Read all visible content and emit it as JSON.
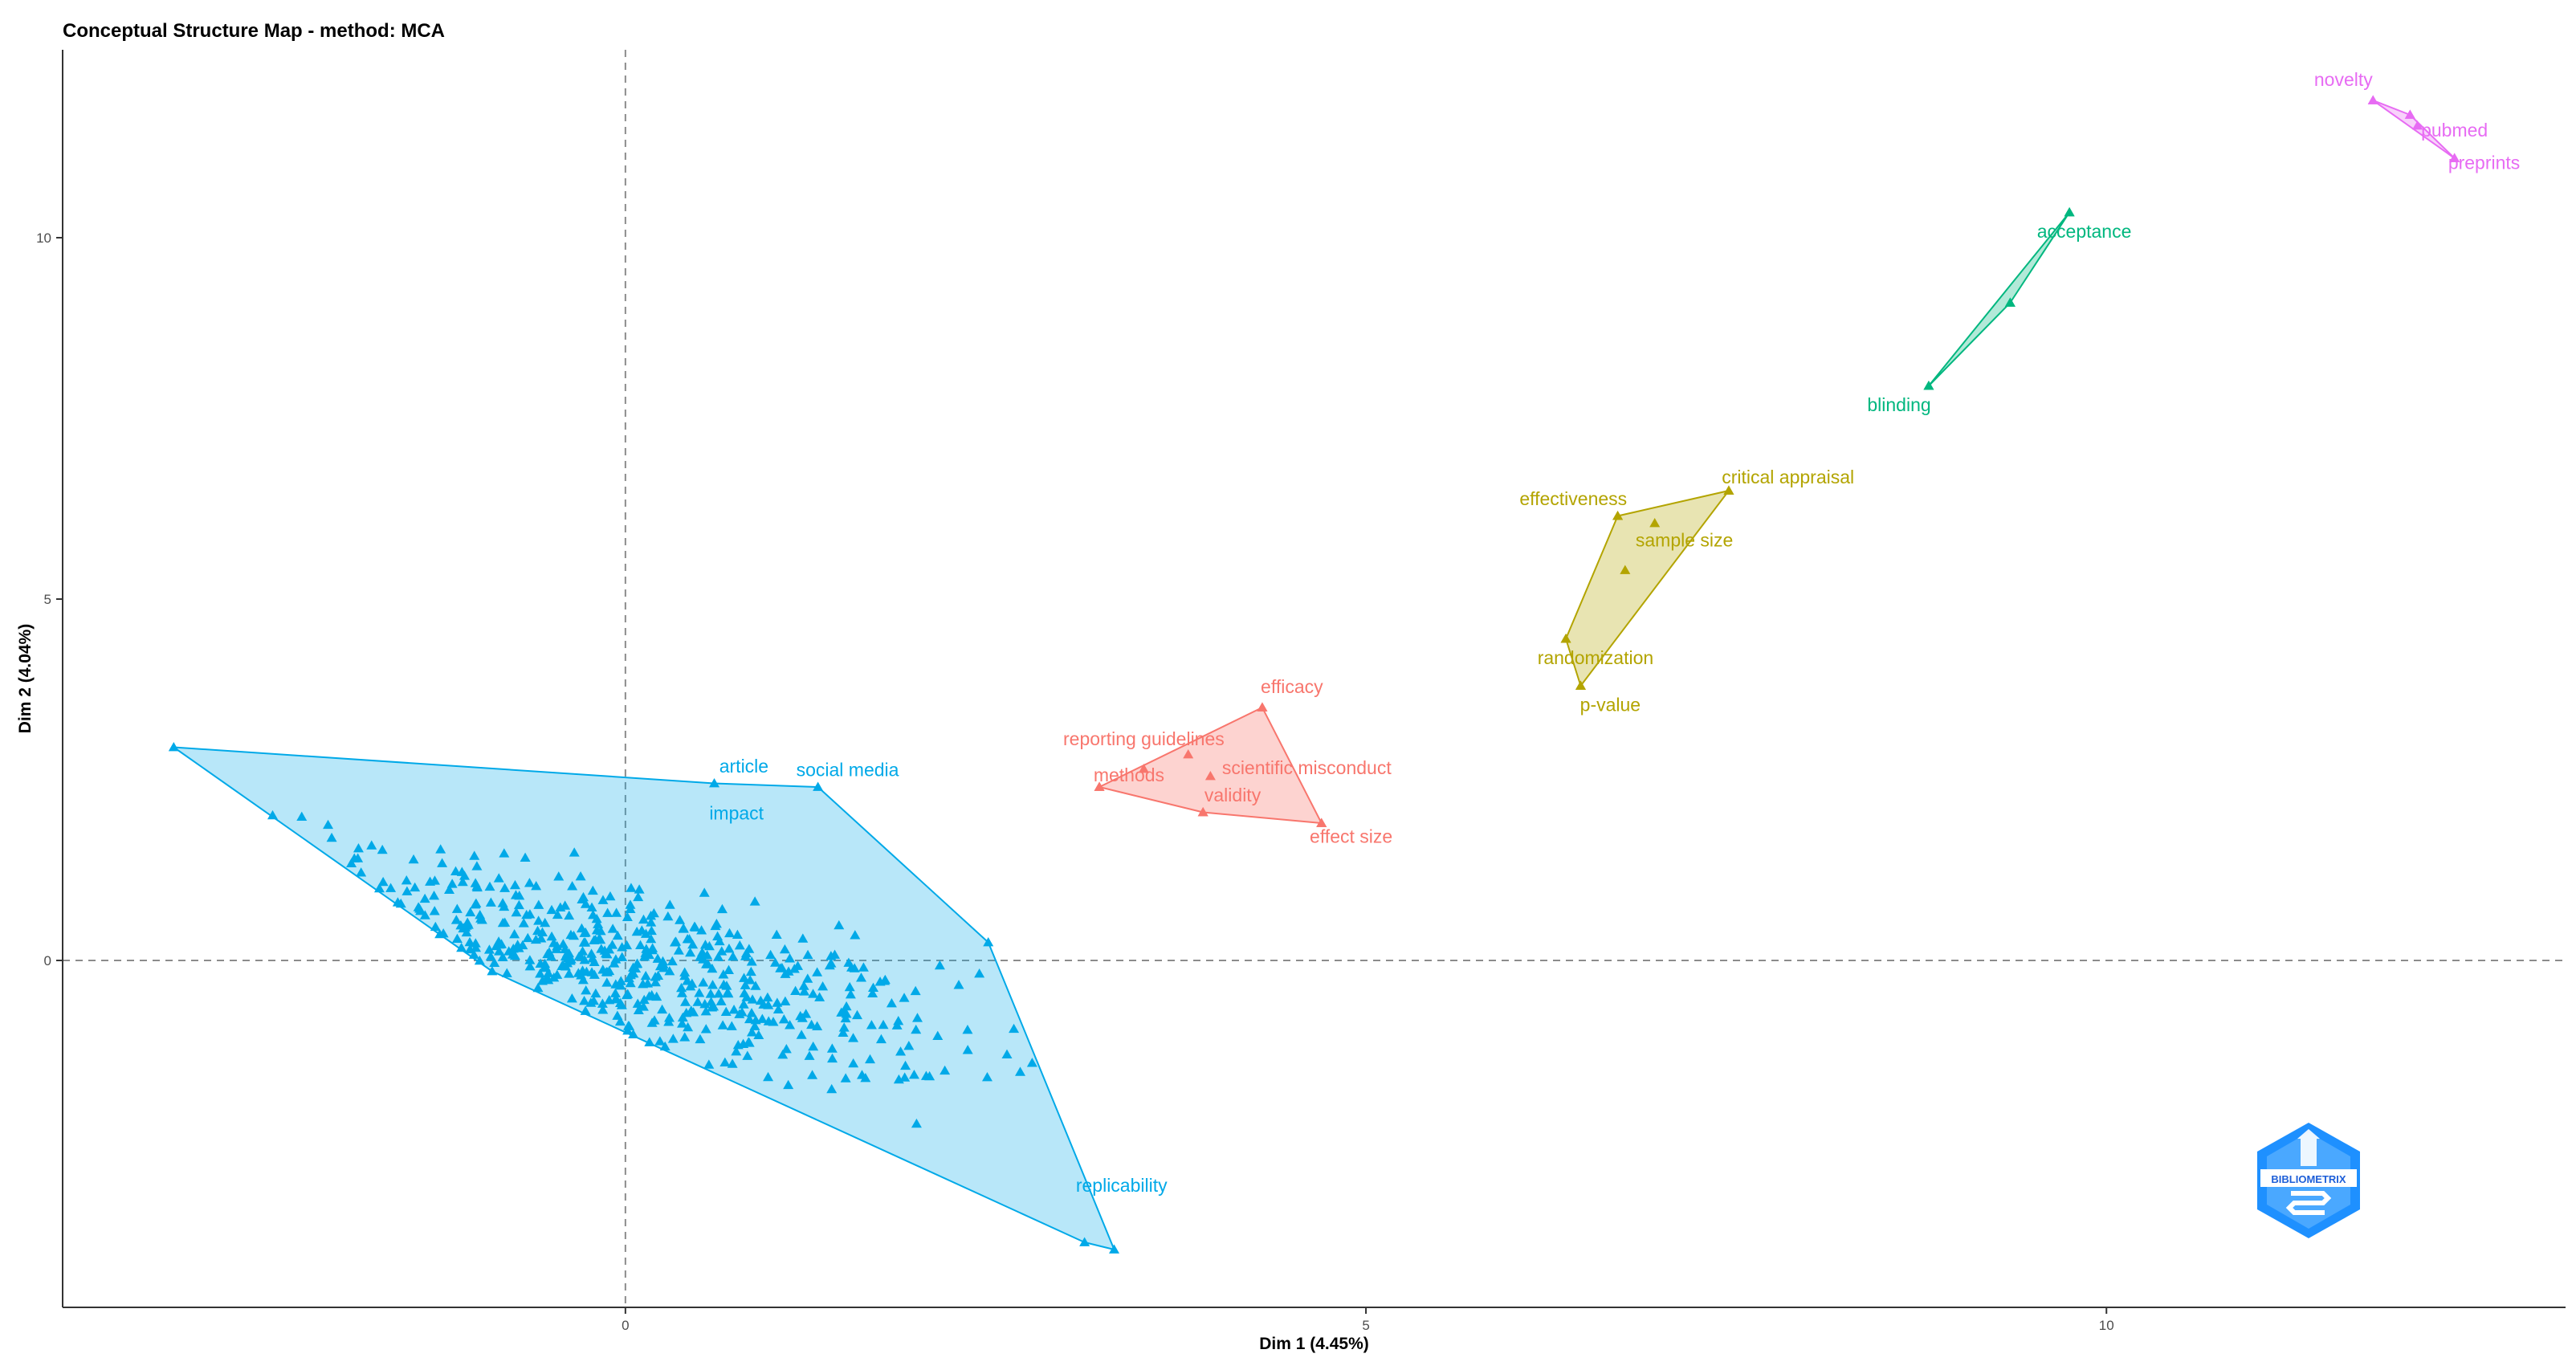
{
  "chart_data": {
    "type": "scatter",
    "title": "Conceptual Structure Map - method: MCA",
    "xlabel": "Dim 1 (4.45%)",
    "ylabel": "Dim 2 (4.04%)",
    "xlim": [
      -3.8,
      13.1
    ],
    "ylim": [
      -4.8,
      12.6
    ],
    "xticks": [
      0,
      5,
      10
    ],
    "yticks": [
      0,
      5,
      10
    ],
    "reference_lines": {
      "x": 0,
      "y": 0,
      "style": "dashed"
    },
    "grid": false,
    "legend": "none",
    "clusters": [
      {
        "color": "#00a9e8",
        "fill": "rgba(0,169,232,0.28)",
        "hull": [
          [
            -3.05,
            2.95
          ],
          [
            0.6,
            2.45
          ],
          [
            1.3,
            2.4
          ],
          [
            2.45,
            0.25
          ],
          [
            3.3,
            -4.0
          ],
          [
            3.1,
            -3.9
          ],
          [
            -0.9,
            -0.15
          ]
        ],
        "labels": [
          {
            "text": "article",
            "x": 0.8,
            "y": 2.6
          },
          {
            "text": "social media",
            "x": 1.5,
            "y": 2.55
          },
          {
            "text": "impact",
            "x": 0.75,
            "y": 1.95
          },
          {
            "text": "replicability",
            "x": 3.35,
            "y": -3.2
          }
        ],
        "centroid": {
          "x": -0.2,
          "y": 0.0
        },
        "spread": {
          "x": 0.75,
          "y": 0.8
        },
        "count": 520,
        "seed": 12345
      },
      {
        "color": "#f8766d",
        "fill": "rgba(248,118,109,0.32)",
        "hull": [
          [
            3.2,
            2.4
          ],
          [
            4.3,
            3.5
          ],
          [
            4.7,
            1.9
          ],
          [
            3.9,
            2.05
          ]
        ],
        "points": [
          [
            3.2,
            2.4
          ],
          [
            4.3,
            3.5
          ],
          [
            4.7,
            1.9
          ],
          [
            3.9,
            2.05
          ],
          [
            3.5,
            2.65
          ],
          [
            3.8,
            2.85
          ],
          [
            3.95,
            2.55
          ]
        ],
        "labels": [
          {
            "text": "efficacy",
            "x": 4.5,
            "y": 3.7
          },
          {
            "text": "reporting guidelines",
            "x": 3.5,
            "y": 2.98
          },
          {
            "text": "methods",
            "x": 3.4,
            "y": 2.48
          },
          {
            "text": "scientific misconduct",
            "x": 4.6,
            "y": 2.58
          },
          {
            "text": "validity",
            "x": 4.1,
            "y": 2.2
          },
          {
            "text": "effect size",
            "x": 4.9,
            "y": 1.63
          }
        ]
      },
      {
        "color": "#b3a400",
        "fill": "rgba(179,164,0,0.30)",
        "hull": [
          [
            6.7,
            6.15
          ],
          [
            7.45,
            6.5
          ],
          [
            6.45,
            3.8
          ],
          [
            6.35,
            4.45
          ]
        ],
        "points": [
          [
            6.7,
            6.15
          ],
          [
            7.45,
            6.5
          ],
          [
            6.45,
            3.8
          ],
          [
            6.35,
            4.45
          ],
          [
            6.95,
            6.05
          ],
          [
            6.75,
            5.4
          ]
        ],
        "labels": [
          {
            "text": "critical appraisal",
            "x": 7.85,
            "y": 6.6
          },
          {
            "text": "effectiveness",
            "x": 6.4,
            "y": 6.3
          },
          {
            "text": "sample size",
            "x": 7.15,
            "y": 5.73
          },
          {
            "text": "randomization",
            "x": 6.55,
            "y": 4.1
          },
          {
            "text": "p-value",
            "x": 6.65,
            "y": 3.45
          }
        ]
      },
      {
        "color": "#00b77f",
        "fill": "rgba(0,183,127,0.30)",
        "hull": [
          [
            8.8,
            7.95
          ],
          [
            9.35,
            9.1
          ],
          [
            9.75,
            10.35
          ]
        ],
        "points": [
          [
            8.8,
            7.95
          ],
          [
            9.35,
            9.1
          ],
          [
            9.75,
            10.35
          ]
        ],
        "labels": [
          {
            "text": "acceptance",
            "x": 9.85,
            "y": 10.0
          },
          {
            "text": "blinding",
            "x": 8.6,
            "y": 7.6
          }
        ]
      },
      {
        "color": "#e76bf3",
        "fill": "rgba(231,107,243,0.30)",
        "hull": [
          [
            11.8,
            11.9
          ],
          [
            12.05,
            11.7
          ],
          [
            12.35,
            11.1
          ]
        ],
        "points": [
          [
            11.8,
            11.9
          ],
          [
            12.05,
            11.7
          ],
          [
            12.35,
            11.1
          ],
          [
            12.1,
            11.55
          ]
        ],
        "labels": [
          {
            "text": "novelty",
            "x": 11.6,
            "y": 12.1
          },
          {
            "text": "pubmed",
            "x": 12.35,
            "y": 11.4
          },
          {
            "text": "preprints",
            "x": 12.55,
            "y": 10.95
          }
        ]
      }
    ]
  },
  "logo": {
    "text": "BIBLIOMETRIX",
    "color": "#1e90ff"
  }
}
